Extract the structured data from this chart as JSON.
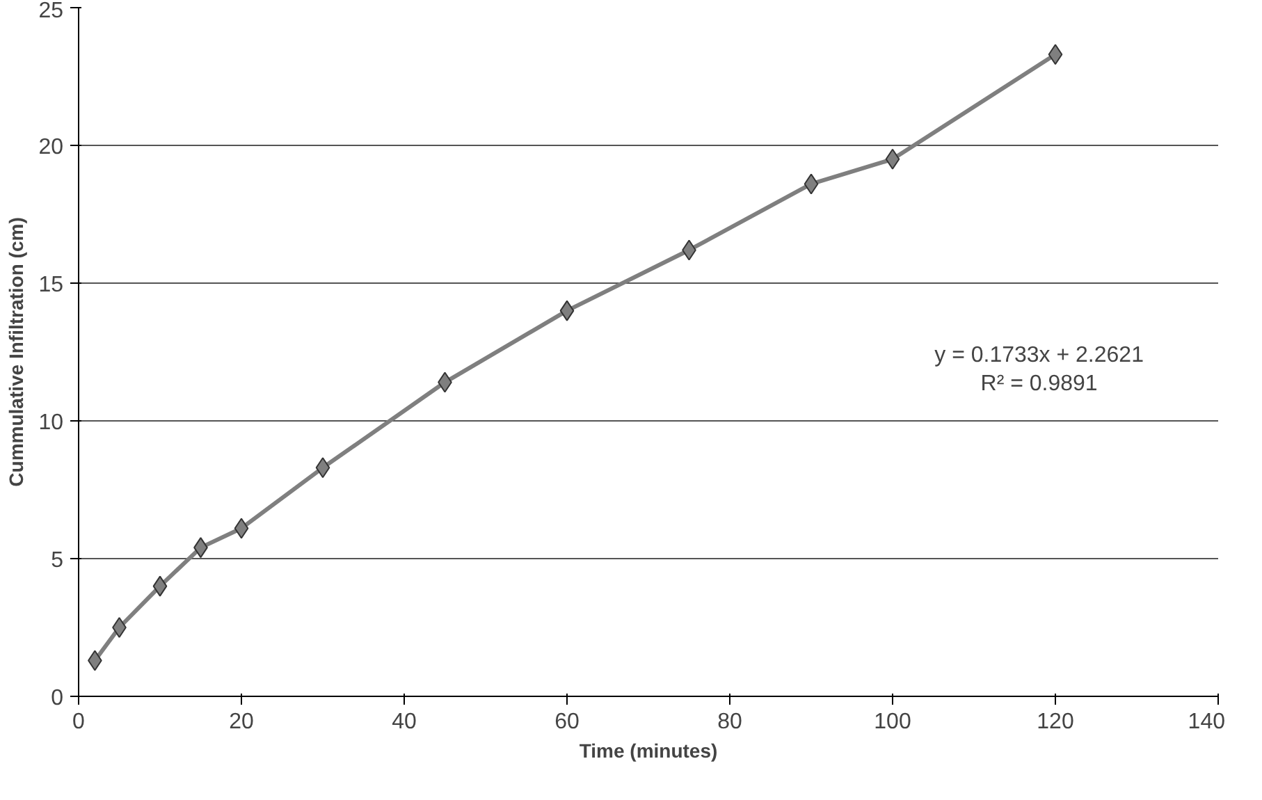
{
  "chart_data": {
    "type": "line",
    "xlabel": "Time (minutes)",
    "ylabel": "Cummulative Infiltration (cm)",
    "x": [
      2,
      5,
      10,
      15,
      20,
      30,
      45,
      60,
      75,
      90,
      100,
      120
    ],
    "series": [
      {
        "color": "#7f7f7f",
        "values": [
          1.3,
          2.5,
          4.0,
          5.4,
          6.1,
          8.3,
          11.4,
          14.0,
          16.2,
          18.6,
          19.5,
          23.3
        ]
      }
    ],
    "xlim": [
      0,
      140
    ],
    "ylim": [
      0,
      25
    ],
    "xticks": [
      0,
      20,
      40,
      60,
      80,
      100,
      120,
      140
    ],
    "yticks": [
      0,
      5,
      10,
      15,
      20,
      25
    ],
    "grid": "y",
    "marker": "diamond",
    "line_style": "solid",
    "annotations": [
      "y = 0.1733x + 2.2621\nR² = 0.9891"
    ]
  }
}
